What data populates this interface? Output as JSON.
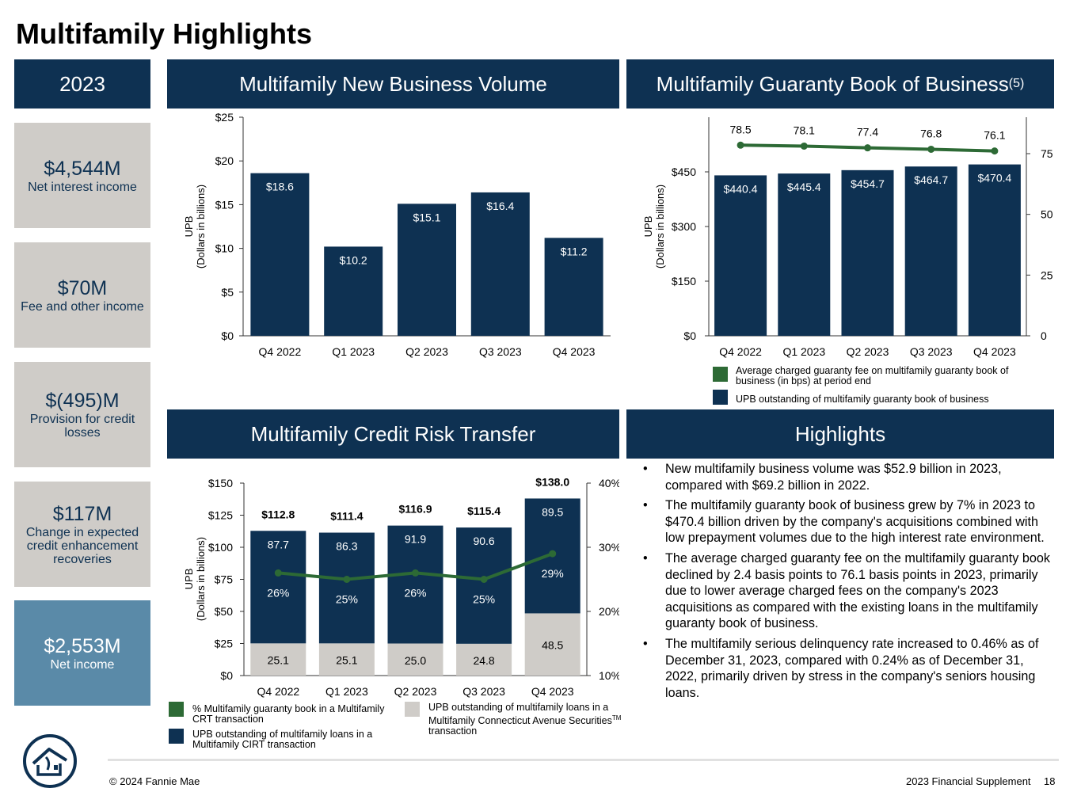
{
  "page": {
    "title": "Multifamily Highlights",
    "copyright": "© 2024 Fannie Mae",
    "supplement": "2023 Financial Supplement",
    "page_number": "18",
    "logo_icon": "fannie-mae-house-logo-icon"
  },
  "colors": {
    "navy": "#0e3152",
    "green": "#2d6a35",
    "gray": "#cfccc8",
    "steel": "#5a8aa8"
  },
  "headers": {
    "year": "2023",
    "nbv": "Multifamily New Business Volume",
    "gbb": "Multifamily Guaranty Book of Business",
    "gbb_sup": "(5)",
    "crt": "Multifamily Credit Risk Transfer",
    "highlights": "Highlights"
  },
  "stats": [
    {
      "value": "$4,544M",
      "label": "Net interest income"
    },
    {
      "value": "$70M",
      "label": "Fee and other income"
    },
    {
      "value": "$(495)M",
      "label": "Provision for credit losses"
    },
    {
      "value": "$117M",
      "label": "Change in expected credit enhancement recoveries"
    },
    {
      "value": "$2,553M",
      "label": "Net income"
    }
  ],
  "chart_data": [
    {
      "id": "new_business_volume",
      "type": "bar",
      "categories": [
        "Q4 2022",
        "Q1 2023",
        "Q2 2023",
        "Q3 2023",
        "Q4 2023"
      ],
      "values": [
        18.6,
        10.2,
        15.1,
        16.4,
        11.2
      ],
      "data_labels": [
        "$18.6",
        "$10.2",
        "$15.1",
        "$16.4",
        "$11.2"
      ],
      "ylabel": "UPB",
      "ylabel2": "(Dollars in billions)",
      "ylim": [
        0,
        25
      ],
      "yticks": [
        0,
        5,
        10,
        15,
        20,
        25
      ],
      "ytick_labels": [
        "$0",
        "$5",
        "$10",
        "$15",
        "$20",
        "$25"
      ]
    },
    {
      "id": "guaranty_book",
      "type": "bar",
      "categories": [
        "Q4 2022",
        "Q1 2023",
        "Q2 2023",
        "Q3 2023",
        "Q4 2023"
      ],
      "values": [
        440.4,
        445.4,
        454.7,
        464.7,
        470.4
      ],
      "data_labels": [
        "$440.4",
        "$445.4",
        "$454.7",
        "$464.7",
        "$470.4"
      ],
      "line_values": [
        78.5,
        78.1,
        77.4,
        76.8,
        76.1
      ],
      "line_labels": [
        "78.5",
        "78.1",
        "77.4",
        "76.8",
        "76.1"
      ],
      "ylabel": "UPB",
      "ylabel2": "(Dollars in billions)",
      "ylim": [
        0,
        600
      ],
      "yticks": [
        0,
        150,
        300,
        450
      ],
      "ytick_labels": [
        "$0",
        "$150",
        "$300",
        "$450"
      ],
      "y2lim": [
        0,
        90
      ],
      "y2ticks": [
        0,
        25,
        50,
        75
      ],
      "y2tick_labels": [
        "0",
        "25",
        "50",
        "75"
      ],
      "legend": [
        "Average charged guaranty fee on multifamily guaranty book of business (in bps) at period end",
        "UPB outstanding of multifamily guaranty book of business"
      ]
    },
    {
      "id": "credit_risk_transfer",
      "type": "bar",
      "stacked": true,
      "categories": [
        "Q4 2022",
        "Q1 2023",
        "Q2 2023",
        "Q3 2023",
        "Q4 2023"
      ],
      "series": [
        {
          "name": "UPB outstanding of multifamily loans in a Multifamily Connecticut Avenue Securities transaction",
          "values": [
            25.1,
            25.1,
            25.0,
            24.8,
            48.5
          ],
          "labels": [
            "25.1",
            "25.1",
            "25.0",
            "24.8",
            "48.5"
          ]
        },
        {
          "name": "UPB outstanding of multifamily loans in a Multifamily CIRT transaction",
          "values": [
            87.7,
            86.3,
            91.9,
            90.6,
            89.5
          ],
          "labels": [
            "87.7",
            "86.3",
            "91.9",
            "90.6",
            "89.5"
          ]
        }
      ],
      "totals": [
        112.8,
        111.4,
        116.9,
        115.4,
        138.0
      ],
      "total_labels": [
        "$112.8",
        "$111.4",
        "$116.9",
        "$115.4",
        "$138.0"
      ],
      "line_values": [
        26,
        25,
        26,
        25,
        29
      ],
      "line_labels": [
        "26%",
        "25%",
        "26%",
        "25%",
        "29%"
      ],
      "ylabel": "UPB",
      "ylabel2": "(Dollars in billions)",
      "ylim": [
        0,
        150
      ],
      "yticks": [
        0,
        25,
        50,
        75,
        100,
        125,
        150
      ],
      "ytick_labels": [
        "$0",
        "$25",
        "$50",
        "$75",
        "$100",
        "$125",
        "$150"
      ],
      "y2lim": [
        10,
        40
      ],
      "y2ticks": [
        10,
        20,
        30,
        40
      ],
      "y2tick_labels": [
        "10%",
        "20%",
        "30%",
        "40%"
      ],
      "legend": {
        "pct": "% Multifamily guaranty book in a Multifamily CRT transaction",
        "cirt": "UPB outstanding of multifamily loans in a Multifamily CIRT transaction",
        "cas": "UPB outstanding of multifamily loans in a Multifamily Connecticut Avenue Securities",
        "cas_sup": "TM",
        "cas_tail": "transaction"
      }
    }
  ],
  "highlights": [
    "New multifamily business volume was $52.9 billion in 2023, compared with $69.2 billion in 2022.",
    "The multifamily guaranty book of business grew by 7% in 2023 to $470.4 billion driven by the company's acquisitions combined with low prepayment volumes due to the high interest rate environment.",
    "The average charged guaranty fee on the multifamily guaranty book declined by 2.4 basis points to 76.1 basis points in 2023, primarily due to lower average charged fees on the company's 2023 acquisitions as compared with the existing loans in the multifamily guaranty book of business.",
    "The multifamily serious delinquency rate increased to 0.46% as of December 31, 2023, compared with 0.24% as of December 31, 2022, primarily driven by stress in the company's seniors housing loans."
  ]
}
